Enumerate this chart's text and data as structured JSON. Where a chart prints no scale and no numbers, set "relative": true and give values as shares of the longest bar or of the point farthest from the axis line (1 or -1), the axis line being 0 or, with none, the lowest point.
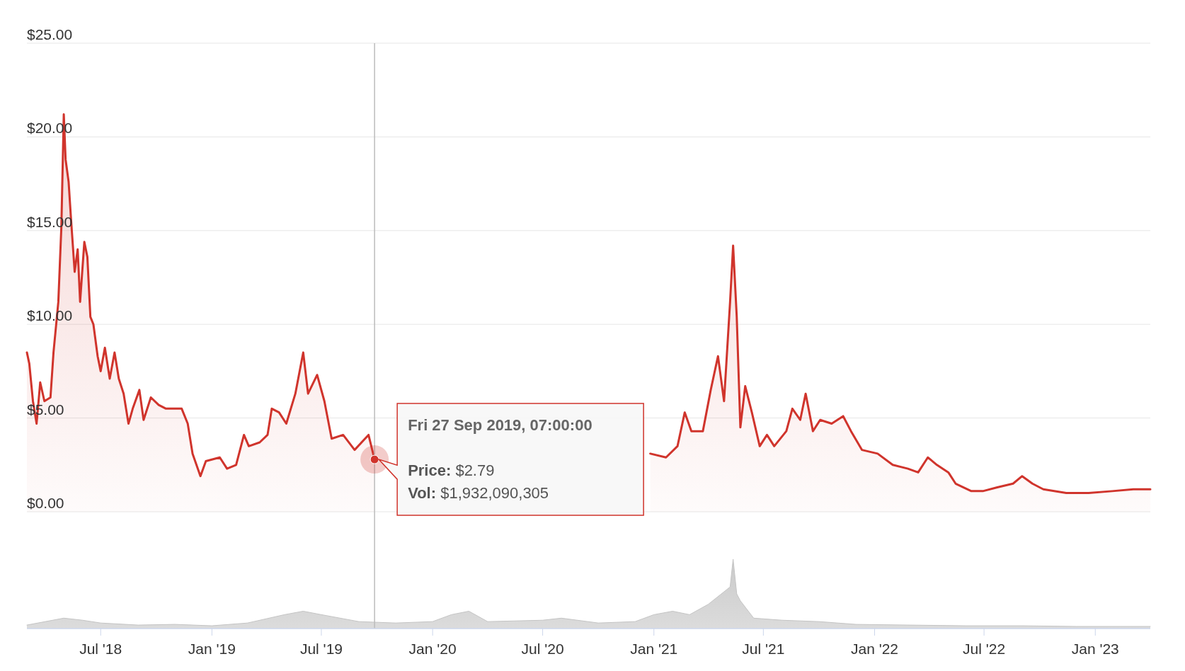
{
  "chart_data": [
    {
      "type": "area",
      "color": "#d0342c",
      "tick_labels": "y",
      "grid": "y",
      "xlim": [
        "2018-03-01",
        "2023-04-02"
      ],
      "ylim": [
        0,
        25
      ],
      "yticks": [
        {
          "value": 0,
          "label": "$0.00"
        },
        {
          "value": 5,
          "label": "$5.00"
        },
        {
          "value": 10,
          "label": "$10.00"
        },
        {
          "value": 15,
          "label": "$15.00"
        },
        {
          "value": 20,
          "label": "$20.00"
        },
        {
          "value": 25,
          "label": "$25.00"
        }
      ],
      "x": [
        "2018-03-01",
        "2018-03-05",
        "2018-03-11",
        "2018-03-17",
        "2018-03-23",
        "2018-03-30",
        "2018-04-09",
        "2018-04-14",
        "2018-04-22",
        "2018-04-27",
        "2018-05-01",
        "2018-05-04",
        "2018-05-09",
        "2018-05-13",
        "2018-05-19",
        "2018-05-24",
        "2018-05-28",
        "2018-06-04",
        "2018-06-09",
        "2018-06-14",
        "2018-06-19",
        "2018-06-26",
        "2018-07-01",
        "2018-07-08",
        "2018-07-16",
        "2018-07-24",
        "2018-07-31",
        "2018-08-08",
        "2018-08-16",
        "2018-08-23",
        "2018-09-03",
        "2018-09-10",
        "2018-09-22",
        "2018-10-05",
        "2018-10-17",
        "2018-11-12",
        "2018-11-22",
        "2018-11-30",
        "2018-12-13",
        "2018-12-22",
        "2019-01-14",
        "2019-01-26",
        "2019-02-10",
        "2019-02-23",
        "2019-03-03",
        "2019-03-21",
        "2019-04-03",
        "2019-04-10",
        "2019-04-22",
        "2019-05-04",
        "2019-05-19",
        "2019-06-01",
        "2019-06-09",
        "2019-06-24",
        "2019-07-06",
        "2019-07-18",
        "2019-08-06",
        "2019-08-25",
        "2019-09-17",
        "2019-09-27",
        "2019-10-14",
        "2019-11-02",
        "2019-11-21",
        "2019-12-16",
        "2020-01-10",
        "2020-02-05",
        "2020-02-15",
        "2020-03-01",
        "2020-03-12",
        "2020-04-19",
        "2020-06-08",
        "2020-07-03",
        "2020-08-04",
        "2020-08-23",
        "2020-09-17",
        "2020-10-12",
        "2020-11-06",
        "2020-12-01",
        "2020-12-26",
        "2021-01-21",
        "2021-02-09",
        "2021-02-21",
        "2021-03-04",
        "2021-03-23",
        "2021-04-05",
        "2021-04-17",
        "2021-04-27",
        "2021-05-07",
        "2021-05-12",
        "2021-05-18",
        "2021-05-24",
        "2021-06-01",
        "2021-06-12",
        "2021-06-25",
        "2021-07-07",
        "2021-07-19",
        "2021-08-08",
        "2021-08-18",
        "2021-08-31",
        "2021-09-09",
        "2021-09-21",
        "2021-10-03",
        "2021-10-22",
        "2021-11-10",
        "2021-11-23",
        "2021-12-11",
        "2022-01-06",
        "2022-01-31",
        "2022-02-25",
        "2022-03-14",
        "2022-03-30",
        "2022-04-14",
        "2022-05-03",
        "2022-05-15",
        "2022-06-10",
        "2022-06-29",
        "2022-07-23",
        "2022-08-18",
        "2022-09-02",
        "2022-09-19",
        "2022-10-07",
        "2022-11-14",
        "2022-12-21",
        "2023-01-29",
        "2023-03-05",
        "2023-04-02"
      ],
      "values": [
        8.5,
        7.9,
        5.9,
        4.7,
        6.9,
        5.9,
        6.1,
        8.5,
        11.2,
        15.2,
        21.2,
        18.8,
        17.6,
        15.6,
        12.8,
        14.0,
        11.2,
        14.4,
        13.6,
        10.4,
        10.0,
        8.3,
        7.5,
        8.75,
        7.1,
        8.5,
        7.1,
        6.3,
        4.7,
        5.5,
        6.5,
        4.9,
        6.1,
        5.7,
        5.5,
        5.5,
        4.7,
        3.1,
        1.9,
        2.7,
        2.9,
        2.3,
        2.5,
        4.1,
        3.5,
        3.7,
        4.1,
        5.5,
        5.3,
        4.7,
        6.3,
        8.5,
        6.3,
        7.3,
        5.9,
        3.9,
        4.1,
        3.3,
        4.1,
        2.79,
        null,
        null,
        null,
        null,
        null,
        null,
        null,
        null,
        null,
        null,
        null,
        null,
        null,
        null,
        null,
        null,
        null,
        null,
        3.1,
        2.9,
        3.5,
        5.3,
        4.3,
        4.3,
        6.5,
        8.3,
        5.9,
        11.2,
        14.2,
        10.4,
        4.5,
        6.7,
        5.3,
        3.5,
        4.1,
        3.5,
        4.3,
        5.5,
        4.9,
        6.3,
        4.3,
        4.9,
        4.7,
        5.1,
        4.3,
        3.3,
        3.1,
        2.5,
        2.3,
        2.1,
        2.9,
        2.5,
        2.1,
        1.5,
        1.1,
        1.1,
        1.3,
        1.5,
        1.9,
        1.5,
        1.2,
        1.0,
        1.0,
        1.1,
        1.2,
        1.2
      ],
      "ref_lines": [
        {
          "axis": "x",
          "value": "2019-09-27",
          "color": "#bbbbbb"
        }
      ],
      "annotations": [
        {
          "text": "Fri 27 Sep 2019, 07:00:00",
          "x": "2019-09-27",
          "y": 2.79
        },
        "Price: $2.79",
        "Vol: $1,932,090,305"
      ]
    },
    {
      "type": "area",
      "relative": true,
      "color": "#c4c4c4",
      "tick_labels": "x",
      "xlim": [
        "2018-03-01",
        "2023-04-02"
      ],
      "xticks": [
        {
          "value": "2018-07-01",
          "label": "Jul '18"
        },
        {
          "value": "2019-01-01",
          "label": "Jan '19"
        },
        {
          "value": "2019-07-01",
          "label": "Jul '19"
        },
        {
          "value": "2020-01-01",
          "label": "Jan '20"
        },
        {
          "value": "2020-07-01",
          "label": "Jul '20"
        },
        {
          "value": "2021-01-01",
          "label": "Jan '21"
        },
        {
          "value": "2021-07-01",
          "label": "Jul '21"
        },
        {
          "value": "2022-01-01",
          "label": "Jan '22"
        },
        {
          "value": "2022-07-01",
          "label": "Jul '22"
        },
        {
          "value": "2023-01-01",
          "label": "Jan '23"
        }
      ],
      "x": [
        "2018-03-01",
        "2018-05-01",
        "2018-06-01",
        "2018-07-01",
        "2018-09-01",
        "2018-11-01",
        "2019-01-01",
        "2019-03-01",
        "2019-05-01",
        "2019-06-01",
        "2019-07-01",
        "2019-09-01",
        "2019-11-01",
        "2020-01-01",
        "2020-02-01",
        "2020-03-01",
        "2020-04-01",
        "2020-07-01",
        "2020-08-01",
        "2020-10-01",
        "2020-12-01",
        "2021-01-01",
        "2021-02-01",
        "2021-03-01",
        "2021-04-01",
        "2021-05-07",
        "2021-05-12",
        "2021-05-18",
        "2021-05-24",
        "2021-06-15",
        "2021-08-01",
        "2021-10-01",
        "2021-12-01",
        "2022-03-01",
        "2022-06-01",
        "2022-09-01",
        "2022-12-01",
        "2023-04-02"
      ],
      "values": [
        0.05,
        0.15,
        0.12,
        0.08,
        0.05,
        0.06,
        0.04,
        0.08,
        0.2,
        0.25,
        0.2,
        0.1,
        0.08,
        0.1,
        0.2,
        0.25,
        0.1,
        0.12,
        0.15,
        0.08,
        0.1,
        0.2,
        0.25,
        0.2,
        0.35,
        0.6,
        1.0,
        0.5,
        0.4,
        0.15,
        0.12,
        0.1,
        0.06,
        0.05,
        0.04,
        0.04,
        0.03,
        0.03
      ],
      "ref_lines": [
        {
          "axis": "x",
          "value": "2019-09-27",
          "color": "#bbbbbb"
        }
      ]
    }
  ]
}
